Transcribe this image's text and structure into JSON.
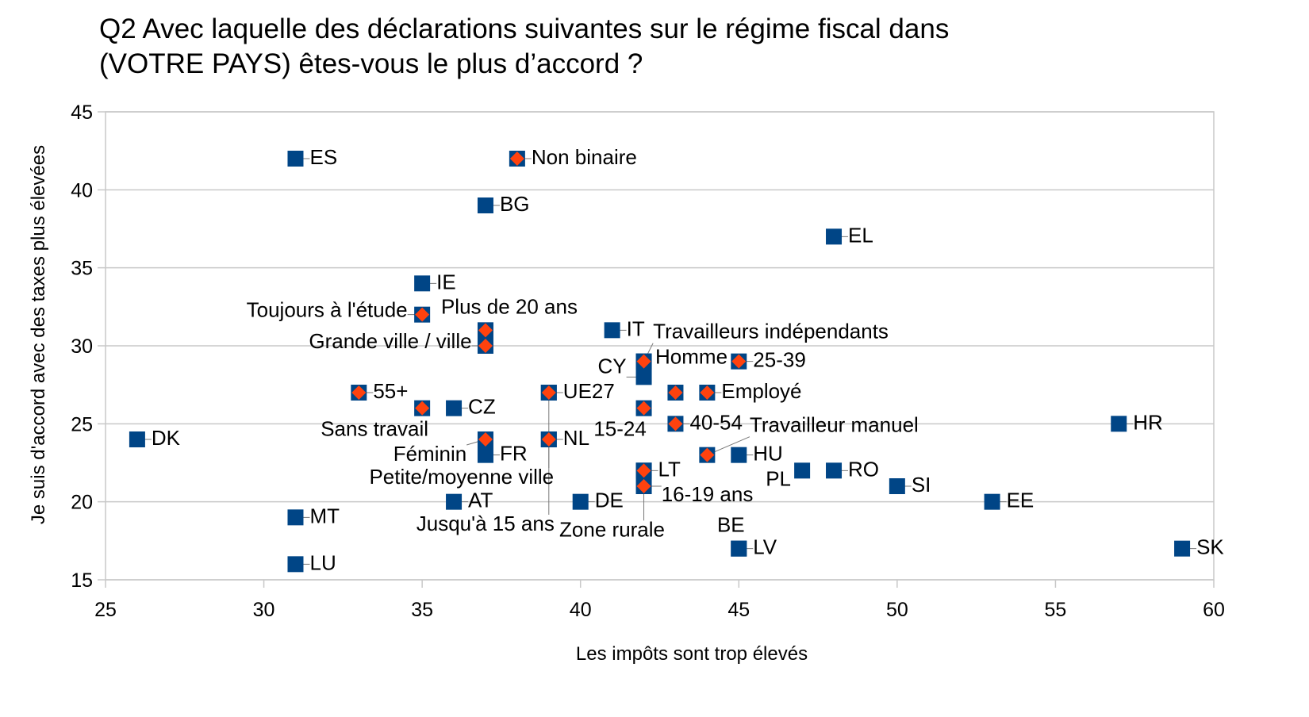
{
  "chart_data": {
    "type": "scatter",
    "title_lines": [
      "Q2 Avec laquelle des déclarations suivantes sur le régime fiscal dans",
      "(VOTRE PAYS) êtes-vous le plus d’accord ?"
    ],
    "xlabel": "Les impôts sont trop élevés",
    "ylabel": "Je suis d'accord avec des taxes plus élevées",
    "xlim": [
      25,
      60
    ],
    "ylim": [
      15,
      45
    ],
    "xticks": [
      25,
      30,
      35,
      40,
      45,
      50,
      55,
      60
    ],
    "yticks": [
      15,
      20,
      25,
      30,
      35,
      40,
      45
    ],
    "grid": "horizontal",
    "colors": {
      "square": "#004586",
      "diamond": "#ff420e",
      "grid": "#c8c8c8"
    },
    "points": [
      {
        "label": "ES",
        "x": 31,
        "y": 42,
        "marker": "square"
      },
      {
        "label": "BG",
        "x": 37,
        "y": 39,
        "marker": "square"
      },
      {
        "label": "EL",
        "x": 48,
        "y": 37,
        "marker": "square"
      },
      {
        "label": "IE",
        "x": 35,
        "y": 34,
        "marker": "square"
      },
      {
        "label": "IT",
        "x": 41,
        "y": 31,
        "marker": "square"
      },
      {
        "label": "CY",
        "x": 42,
        "y": 28,
        "marker": "square"
      },
      {
        "label": "CZ",
        "x": 36,
        "y": 26,
        "marker": "square"
      },
      {
        "label": "DK",
        "x": 26,
        "y": 24,
        "marker": "square"
      },
      {
        "label": "HR",
        "x": 57,
        "y": 25,
        "marker": "square"
      },
      {
        "label": "FR",
        "x": 37,
        "y": 23,
        "marker": "square"
      },
      {
        "label": "NL",
        "x": 39,
        "y": 24,
        "marker": "square"
      },
      {
        "label": "HU",
        "x": 45,
        "y": 23,
        "marker": "square"
      },
      {
        "label": "PL",
        "x": 47,
        "y": 22,
        "marker": "square"
      },
      {
        "label": "RO",
        "x": 48,
        "y": 22,
        "marker": "square"
      },
      {
        "label": "SI",
        "x": 50,
        "y": 21,
        "marker": "square"
      },
      {
        "label": "LT",
        "x": 42,
        "y": 22,
        "marker": "square"
      },
      {
        "label": "AT",
        "x": 36,
        "y": 20,
        "marker": "square"
      },
      {
        "label": "DE",
        "x": 40,
        "y": 20,
        "marker": "square"
      },
      {
        "label": "EE",
        "x": 53,
        "y": 20,
        "marker": "square"
      },
      {
        "label": "MT",
        "x": 31,
        "y": 19,
        "marker": "square"
      },
      {
        "label": "LV",
        "x": 45,
        "y": 17,
        "marker": "square"
      },
      {
        "label": "BE",
        "x": 45,
        "y": 17,
        "marker": "square"
      },
      {
        "label": "SK",
        "x": 59,
        "y": 17,
        "marker": "square"
      },
      {
        "label": "LU",
        "x": 31,
        "y": 16,
        "marker": "square"
      },
      {
        "label": "UE27",
        "x": 39,
        "y": 27,
        "marker": "square"
      },
      {
        "label": "Non binaire",
        "x": 38,
        "y": 42,
        "marker": "diamond"
      },
      {
        "label": "Toujours à l'étude",
        "x": 35,
        "y": 32,
        "marker": "diamond"
      },
      {
        "label": "Plus de 20 ans",
        "x": 37,
        "y": 31,
        "marker": "diamond"
      },
      {
        "label": "Grande ville / ville",
        "x": 37,
        "y": 30,
        "marker": "diamond"
      },
      {
        "label": "55+",
        "x": 33,
        "y": 27,
        "marker": "diamond"
      },
      {
        "label": "Sans travail",
        "x": 35,
        "y": 26,
        "marker": "diamond"
      },
      {
        "label": "Petite/moyenne ville",
        "x": 39,
        "y": 27,
        "marker": "diamond"
      },
      {
        "label": "Homme",
        "x": 42,
        "y": 29,
        "marker": "diamond"
      },
      {
        "label": "Travailleurs indépendants",
        "x": 42,
        "y": 29,
        "marker": "diamond"
      },
      {
        "label": "25-39",
        "x": 45,
        "y": 29,
        "marker": "diamond"
      },
      {
        "label": "",
        "x": 43,
        "y": 27,
        "marker": "diamond"
      },
      {
        "label": "Employé",
        "x": 44,
        "y": 27,
        "marker": "diamond"
      },
      {
        "label": "15-24",
        "x": 42,
        "y": 26,
        "marker": "diamond"
      },
      {
        "label": "40-54",
        "x": 43,
        "y": 25,
        "marker": "diamond"
      },
      {
        "label": "Féminin",
        "x": 37,
        "y": 24,
        "marker": "diamond"
      },
      {
        "label": "Jusqu'à 15 ans",
        "x": 39,
        "y": 24,
        "marker": "diamond"
      },
      {
        "label": "Travailleur manuel",
        "x": 44,
        "y": 23,
        "marker": "diamond"
      },
      {
        "label": "Zone rurale",
        "x": 42,
        "y": 22,
        "marker": "diamond"
      },
      {
        "label": "16-19 ans",
        "x": 42,
        "y": 21,
        "marker": "diamond"
      }
    ]
  }
}
